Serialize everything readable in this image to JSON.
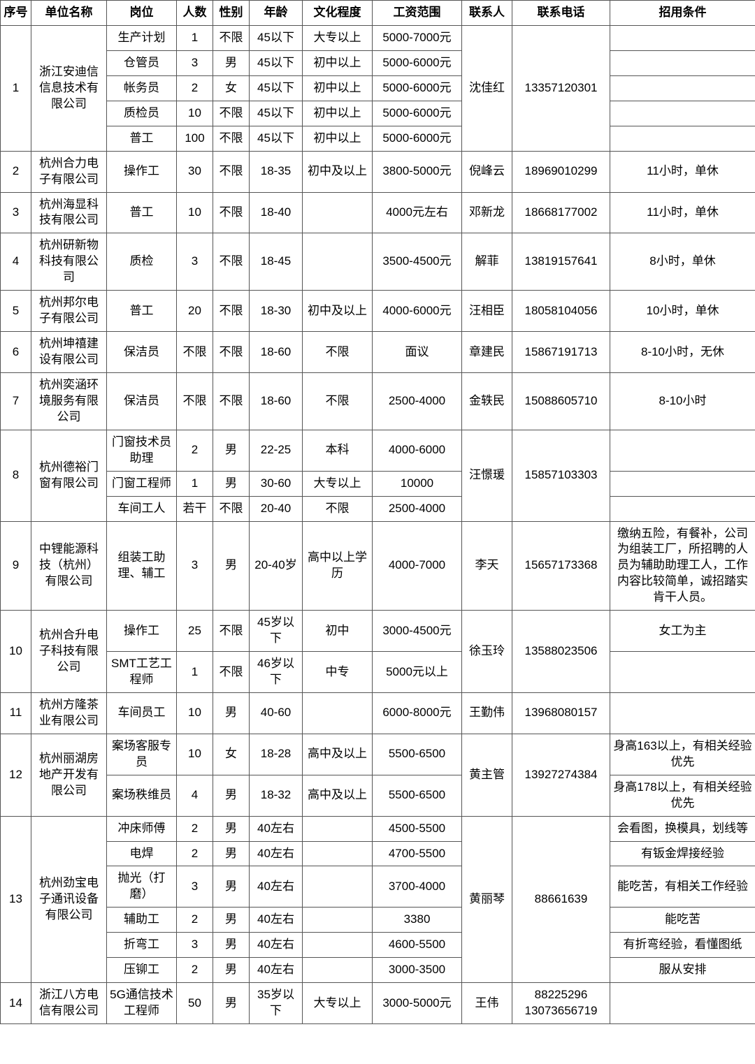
{
  "columns": [
    "序号",
    "单位名称",
    "岗位",
    "人数",
    "性别",
    "年龄",
    "文化程度",
    "工资范围",
    "联系人",
    "联系电话",
    "招用条件"
  ],
  "groups": [
    {
      "seq": "1",
      "org": "浙江安迪信信息技术有限公司",
      "contact": "沈佳红",
      "phone": "13357120301",
      "rows": [
        {
          "pos": "生产计划",
          "num": "1",
          "sex": "不限",
          "age": "45以下",
          "edu": "大专以上",
          "sal": "5000-7000元",
          "cond": ""
        },
        {
          "pos": "仓管员",
          "num": "3",
          "sex": "男",
          "age": "45以下",
          "edu": "初中以上",
          "sal": "5000-6000元",
          "cond": ""
        },
        {
          "pos": "帐务员",
          "num": "2",
          "sex": "女",
          "age": "45以下",
          "edu": "初中以上",
          "sal": "5000-6000元",
          "cond": ""
        },
        {
          "pos": "质检员",
          "num": "10",
          "sex": "不限",
          "age": "45以下",
          "edu": "初中以上",
          "sal": "5000-6000元",
          "cond": ""
        },
        {
          "pos": "普工",
          "num": "100",
          "sex": "不限",
          "age": "45以下",
          "edu": "初中以上",
          "sal": "5000-6000元",
          "cond": ""
        }
      ]
    },
    {
      "seq": "2",
      "org": "杭州合力电子有限公司",
      "contact": "倪峰云",
      "phone": "18969010299",
      "rows": [
        {
          "pos": "操作工",
          "num": "30",
          "sex": "不限",
          "age": "18-35",
          "edu": "初中及以上",
          "sal": "3800-5000元",
          "cond": "11小时，单休"
        }
      ]
    },
    {
      "seq": "3",
      "org": "杭州海显科技有限公司",
      "contact": "邓新龙",
      "phone": "18668177002",
      "rows": [
        {
          "pos": "普工",
          "num": "10",
          "sex": "不限",
          "age": "18-40",
          "edu": "",
          "sal": "4000元左右",
          "cond": "11小时，单休"
        }
      ]
    },
    {
      "seq": "4",
      "org": "杭州研新物科技有限公司",
      "contact": "解菲",
      "phone": "13819157641",
      "rows": [
        {
          "pos": "质检",
          "num": "3",
          "sex": "不限",
          "age": "18-45",
          "edu": "",
          "sal": "3500-4500元",
          "cond": "8小时，单休"
        }
      ]
    },
    {
      "seq": "5",
      "org": "杭州邦尔电子有限公司",
      "contact": "汪相臣",
      "phone": "18058104056",
      "rows": [
        {
          "pos": "普工",
          "num": "20",
          "sex": "不限",
          "age": "18-30",
          "edu": "初中及以上",
          "sal": "4000-6000元",
          "cond": "10小时，单休"
        }
      ]
    },
    {
      "seq": "6",
      "org": "杭州坤禧建设有限公司",
      "contact": "章建民",
      "phone": "15867191713",
      "rows": [
        {
          "pos": "保洁员",
          "num": "不限",
          "sex": "不限",
          "age": "18-60",
          "edu": "不限",
          "sal": "面议",
          "cond": "8-10小时，无休"
        }
      ]
    },
    {
      "seq": "7",
      "org": "杭州奕涵环境服务有限公司",
      "contact": "金轶民",
      "phone": "15088605710",
      "rows": [
        {
          "pos": "保洁员",
          "num": "不限",
          "sex": "不限",
          "age": "18-60",
          "edu": "不限",
          "sal": "2500-4000",
          "cond": "8-10小时"
        }
      ]
    },
    {
      "seq": "8",
      "org": "杭州德裕门窗有限公司",
      "contact": "汪憬瑗",
      "phone": "15857103303",
      "rows": [
        {
          "pos": "门窗技术员助理",
          "num": "2",
          "sex": "男",
          "age": "22-25",
          "edu": "本科",
          "sal": "4000-6000",
          "cond": ""
        },
        {
          "pos": "门窗工程师",
          "num": "1",
          "sex": "男",
          "age": "30-60",
          "edu": "大专以上",
          "sal": "10000",
          "cond": ""
        },
        {
          "pos": "车间工人",
          "num": "若干",
          "sex": "不限",
          "age": "20-40",
          "edu": "不限",
          "sal": "2500-4000",
          "cond": ""
        }
      ]
    },
    {
      "seq": "9",
      "org": "中锂能源科技（杭州）有限公司",
      "contact": "李天",
      "phone": "15657173368",
      "rows": [
        {
          "pos": "组装工助理、辅工",
          "num": "3",
          "sex": "男",
          "age": "20-40岁",
          "edu": "高中以上学历",
          "sal": "4000-7000",
          "cond": "缴纳五险，有餐补，公司为组装工厂，所招聘的人员为辅助助理工人，工作内容比较简单，诚招踏实肯干人员。"
        }
      ]
    },
    {
      "seq": "10",
      "org": "杭州合升电子科技有限公司",
      "contact": "徐玉玲",
      "phone": "13588023506",
      "rows": [
        {
          "pos": "操作工",
          "num": "25",
          "sex": "不限",
          "age": "45岁以下",
          "edu": "初中",
          "sal": "3000-4500元",
          "cond": "女工为主"
        },
        {
          "pos": "SMT工艺工程师",
          "num": "1",
          "sex": "不限",
          "age": "46岁以下",
          "edu": "中专",
          "sal": "5000元以上",
          "cond": ""
        }
      ]
    },
    {
      "seq": "11",
      "org": "杭州方隆茶业有限公司",
      "contact": "王勤伟",
      "phone": "13968080157",
      "rows": [
        {
          "pos": "车间员工",
          "num": "10",
          "sex": "男",
          "age": "40-60",
          "edu": "",
          "sal": "6000-8000元",
          "cond": ""
        }
      ]
    },
    {
      "seq": "12",
      "org": "杭州丽湖房地产开发有限公司",
      "contact": "黄主管",
      "phone": "13927274384",
      "rows": [
        {
          "pos": "案场客服专员",
          "num": "10",
          "sex": "女",
          "age": "18-28",
          "edu": "高中及以上",
          "sal": "5500-6500",
          "cond": "身高163以上，有相关经验优先"
        },
        {
          "pos": "案场秩维员",
          "num": "4",
          "sex": "男",
          "age": "18-32",
          "edu": "高中及以上",
          "sal": "5500-6500",
          "cond": "身高178以上，有相关经验优先"
        }
      ]
    },
    {
      "seq": "13",
      "org": "杭州劲宝电子通讯设备有限公司",
      "contact": "黄丽琴",
      "phone": "88661639",
      "rows": [
        {
          "pos": "冲床师傅",
          "num": "2",
          "sex": "男",
          "age": "40左右",
          "edu": "",
          "sal": "4500-5500",
          "cond": "会看图，换模具，划线等"
        },
        {
          "pos": "电焊",
          "num": "2",
          "sex": "男",
          "age": "40左右",
          "edu": "",
          "sal": "4700-5500",
          "cond": "有钣金焊接经验"
        },
        {
          "pos": "抛光（打磨）",
          "num": "3",
          "sex": "男",
          "age": "40左右",
          "edu": "",
          "sal": "3700-4000",
          "cond": "能吃苦，有相关工作经验"
        },
        {
          "pos": "辅助工",
          "num": "2",
          "sex": "男",
          "age": "40左右",
          "edu": "",
          "sal": "3380",
          "cond": "能吃苦"
        },
        {
          "pos": "折弯工",
          "num": "3",
          "sex": "男",
          "age": "40左右",
          "edu": "",
          "sal": "4600-5500",
          "cond": "有折弯经验，看懂图纸"
        },
        {
          "pos": "压铆工",
          "num": "2",
          "sex": "男",
          "age": "40左右",
          "edu": "",
          "sal": "3000-3500",
          "cond": "服从安排"
        }
      ]
    },
    {
      "seq": "14",
      "org": "浙江八方电信有限公司",
      "contact": "王伟",
      "phone": "88225296 13073656719",
      "rows": [
        {
          "pos": "5G通信技术工程师",
          "num": "50",
          "sex": "男",
          "age": "35岁以下",
          "edu": "大专以上",
          "sal": "3000-5000元",
          "cond": ""
        }
      ]
    }
  ]
}
